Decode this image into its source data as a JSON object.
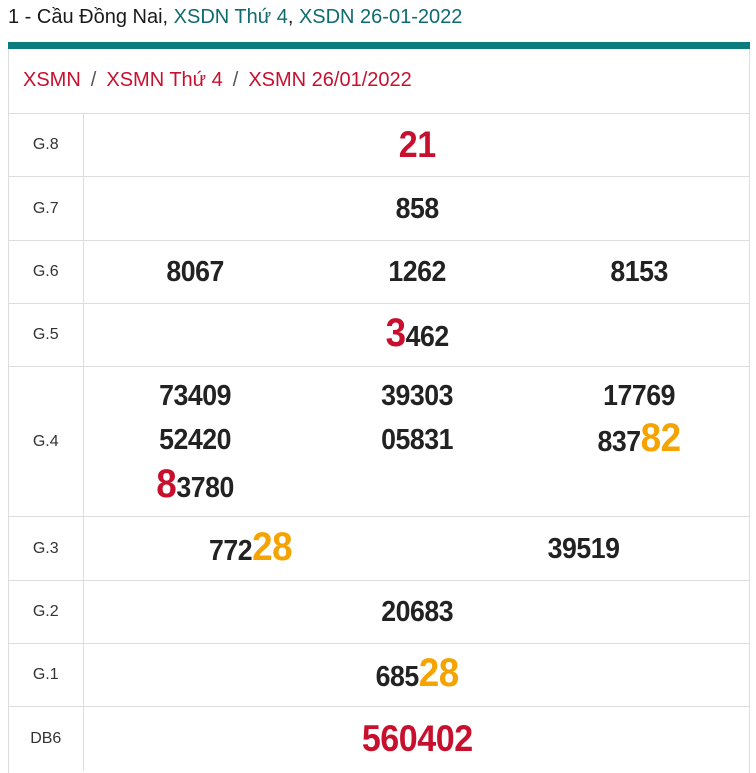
{
  "header": {
    "prefix": "1 - Cầu Đồng Nai, ",
    "link1": "XSDN Thứ 4",
    "comma": ", ",
    "link2": "XSDN 26-01-2022"
  },
  "breadcrumb": [
    "XSMN",
    "XSMN Thứ 4",
    "XSMN 26/01/2022"
  ],
  "breadcrumb_sep": "/",
  "colors": {
    "accent": "#0b7b7e",
    "red": "#c8102e",
    "orange": "#f5a300"
  },
  "rows": [
    {
      "label": "G.8",
      "cols": 1,
      "numbers": [
        [
          {
            "t": "21",
            "c": "red"
          }
        ]
      ]
    },
    {
      "label": "G.7",
      "cols": 1,
      "numbers": [
        [
          {
            "t": "858"
          }
        ]
      ]
    },
    {
      "label": "G.6",
      "cols": 3,
      "numbers": [
        [
          {
            "t": "8067"
          }
        ],
        [
          {
            "t": "1262"
          }
        ],
        [
          {
            "t": "8153"
          }
        ]
      ]
    },
    {
      "label": "G.5",
      "cols": 1,
      "numbers": [
        [
          {
            "t": "3",
            "c": "red"
          },
          {
            "t": "462"
          }
        ]
      ]
    },
    {
      "label": "G.4",
      "cols": 3,
      "numbers": [
        [
          {
            "t": "73409"
          }
        ],
        [
          {
            "t": "39303"
          }
        ],
        [
          {
            "t": "17769"
          }
        ],
        [
          {
            "t": "52420"
          }
        ],
        [
          {
            "t": "05831"
          }
        ],
        [
          {
            "t": "837"
          },
          {
            "t": "82",
            "c": "org"
          }
        ],
        [
          {
            "t": "8",
            "c": "red"
          },
          {
            "t": "3780"
          }
        ]
      ]
    },
    {
      "label": "G.3",
      "cols": 2,
      "numbers": [
        [
          {
            "t": "772"
          },
          {
            "t": "28",
            "c": "org"
          }
        ],
        [
          {
            "t": "39519"
          }
        ]
      ]
    },
    {
      "label": "G.2",
      "cols": 1,
      "numbers": [
        [
          {
            "t": "20683"
          }
        ]
      ]
    },
    {
      "label": "G.1",
      "cols": 1,
      "numbers": [
        [
          {
            "t": "685"
          },
          {
            "t": "28",
            "c": "org"
          }
        ]
      ]
    },
    {
      "label": "DB6",
      "cols": 1,
      "numbers": [
        [
          {
            "t": "560402",
            "c": "red"
          }
        ]
      ]
    }
  ]
}
